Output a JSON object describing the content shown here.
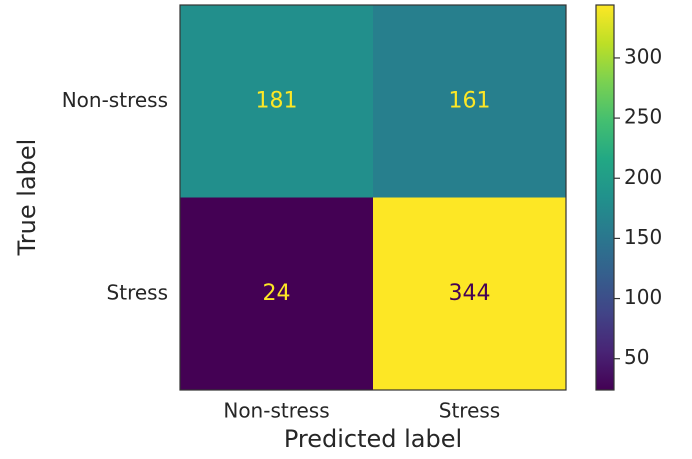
{
  "chart_data": {
    "type": "heatmap",
    "xlabel": "Predicted label",
    "ylabel": "True label",
    "x_categories": [
      "Non-stress",
      "Stress"
    ],
    "y_categories": [
      "Non-stress",
      "Stress"
    ],
    "values": [
      [
        181,
        161
      ],
      [
        24,
        344
      ]
    ],
    "colormap": "viridis",
    "zlim": [
      24,
      344
    ],
    "zticks": [
      50,
      100,
      150,
      200,
      250,
      300
    ]
  }
}
